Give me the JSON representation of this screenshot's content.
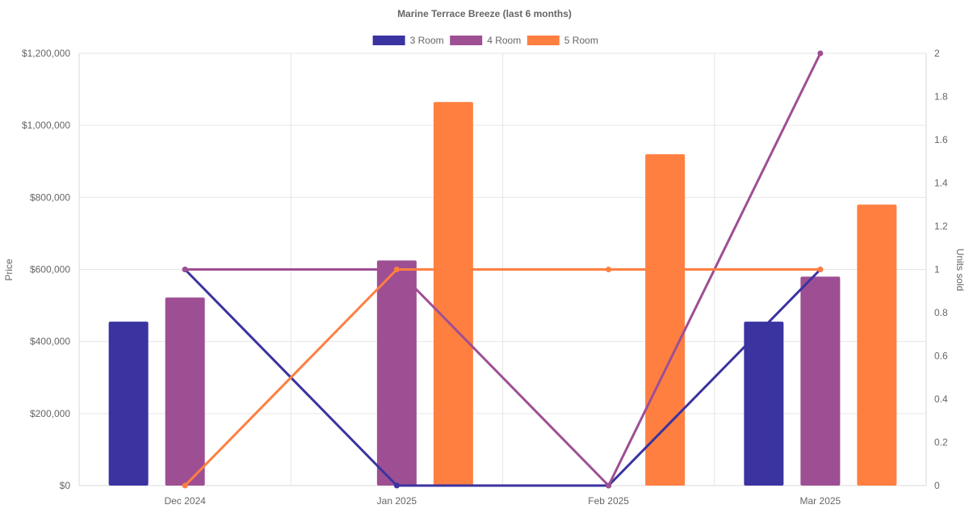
{
  "chart_data": {
    "type": "bar",
    "title": "Marine Terrace Breeze (last 6 months)",
    "categories": [
      "Dec 2024",
      "Jan 2025",
      "Feb 2025",
      "Mar 2025"
    ],
    "legend": {
      "placement": "top-center",
      "entries": [
        "3 Room",
        "4 Room",
        "5 Room"
      ]
    },
    "y_left": {
      "label": "Price",
      "range": [
        0,
        1200000
      ],
      "ticks": [
        "$0",
        "$200,000",
        "$400,000",
        "$600,000",
        "$800,000",
        "$1,000,000",
        "$1,200,000"
      ],
      "tick_values": [
        0,
        200000,
        400000,
        600000,
        800000,
        1000000,
        1200000
      ]
    },
    "y_right": {
      "label": "Units sold",
      "range": [
        0,
        2
      ],
      "ticks": [
        "0",
        "0.2",
        "0.4",
        "0.6",
        "0.8",
        "1",
        "1.2",
        "1.4",
        "1.6",
        "1.8",
        "2"
      ],
      "tick_values": [
        0,
        0.2,
        0.4,
        0.6,
        0.8,
        1,
        1.2,
        1.4,
        1.6,
        1.8,
        2
      ]
    },
    "grid": true,
    "series": [
      {
        "name": "3 Room",
        "color": "#3a33a0",
        "price": [
          455000,
          null,
          null,
          455000
        ],
        "units": [
          1,
          0,
          0,
          1
        ]
      },
      {
        "name": "4 Room",
        "color": "#9e4f93",
        "price": [
          522000,
          625000,
          null,
          580000
        ],
        "units": [
          1,
          1,
          0,
          2
        ]
      },
      {
        "name": "5 Room",
        "color": "#ff7f41",
        "price": [
          null,
          1065000,
          920000,
          780000
        ],
        "units": [
          0,
          1,
          1,
          1
        ]
      }
    ]
  }
}
